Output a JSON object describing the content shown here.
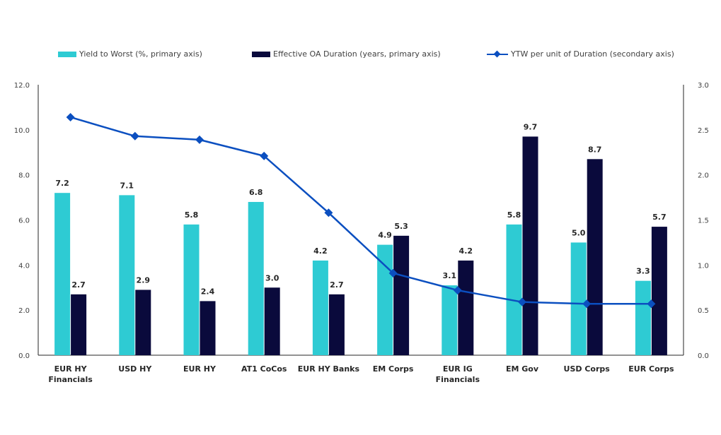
{
  "colors": {
    "ytw": "#2ecbd3",
    "duration": "#0a0a3c",
    "ratio": "#0b4fc0",
    "axis": "#262626"
  },
  "legend": [
    {
      "label": "Yield to Worst (%, primary axis)",
      "kind": "bar",
      "color": "#2ecbd3"
    },
    {
      "label": "Effective OA Duration (years, primary axis)",
      "kind": "bar",
      "color": "#0a0a3c"
    },
    {
      "label": "YTW per unit of Duration (secondary axis)",
      "kind": "line",
      "color": "#0b4fc0"
    }
  ],
  "chart_data": {
    "type": "bar",
    "categories": [
      [
        "EUR HY",
        "Financials"
      ],
      [
        "USD HY"
      ],
      [
        "EUR HY"
      ],
      [
        "AT1 CoCos"
      ],
      [
        "EUR HY Banks"
      ],
      [
        "EM Corps"
      ],
      [
        "EUR IG",
        "Financials"
      ],
      [
        "EM Gov"
      ],
      [
        "USD Corps"
      ],
      [
        "EUR Corps"
      ]
    ],
    "series": [
      {
        "name": "Yield to Worst (%, primary axis)",
        "type": "bar",
        "axis": "primary",
        "values": [
          7.2,
          7.1,
          5.8,
          6.8,
          4.2,
          4.9,
          3.1,
          5.8,
          5.0,
          3.3
        ],
        "labels": [
          "7.2",
          "7.1",
          "5.8",
          "6.8",
          "4.2",
          "4.9",
          "3.1",
          "5.8",
          "5.0",
          "3.3"
        ]
      },
      {
        "name": "Effective OA Duration (years, primary axis)",
        "type": "bar",
        "axis": "primary",
        "values": [
          2.7,
          2.9,
          2.4,
          3.0,
          2.7,
          5.3,
          4.2,
          9.7,
          8.7,
          5.7
        ],
        "labels": [
          "2.7",
          "2.9",
          "2.4",
          "3.0",
          "2.7",
          "5.3",
          "4.2",
          "9.7",
          "8.7",
          "5.7"
        ]
      },
      {
        "name": "YTW per unit of Duration (secondary axis)",
        "type": "line",
        "axis": "secondary",
        "values": [
          2.64,
          2.43,
          2.39,
          2.21,
          1.58,
          0.91,
          0.72,
          0.59,
          0.57,
          0.57
        ]
      }
    ],
    "ylim": [
      0,
      12
    ],
    "y2lim": [
      0,
      3
    ],
    "yticks": [
      "0.0",
      "2.0",
      "4.0",
      "6.0",
      "8.0",
      "10.0",
      "12.0"
    ],
    "y2ticks": [
      "0.0",
      "0.5",
      "1.0",
      "1.5",
      "2.0",
      "2.5",
      "3.0"
    ],
    "grid": false,
    "legend_position": "top"
  }
}
